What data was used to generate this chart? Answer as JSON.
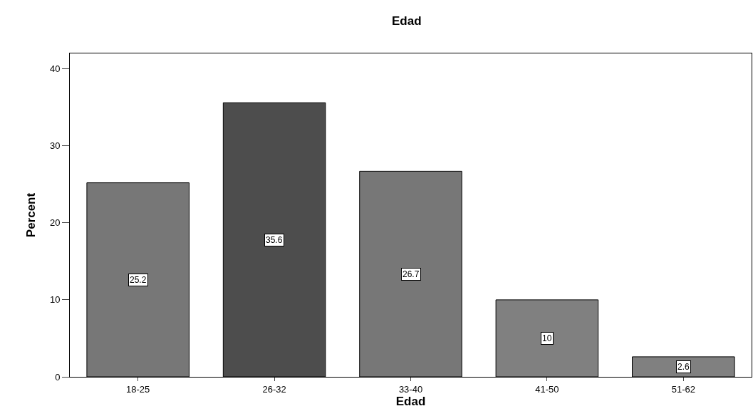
{
  "chart_data": {
    "type": "bar",
    "title": "Edad",
    "xlabel": "Edad",
    "ylabel": "Percent",
    "categories": [
      "18-25",
      "26-32",
      "33-40",
      "41-50",
      "51-62"
    ],
    "values": [
      25.2,
      35.6,
      26.7,
      10,
      2.6
    ],
    "colors": [
      "#777777",
      "#4d4d4d",
      "#777777",
      "#808080",
      "#808080"
    ],
    "ylim": [
      0,
      42
    ],
    "yticks": [
      0,
      10,
      20,
      30,
      40
    ],
    "data_labels": true
  }
}
